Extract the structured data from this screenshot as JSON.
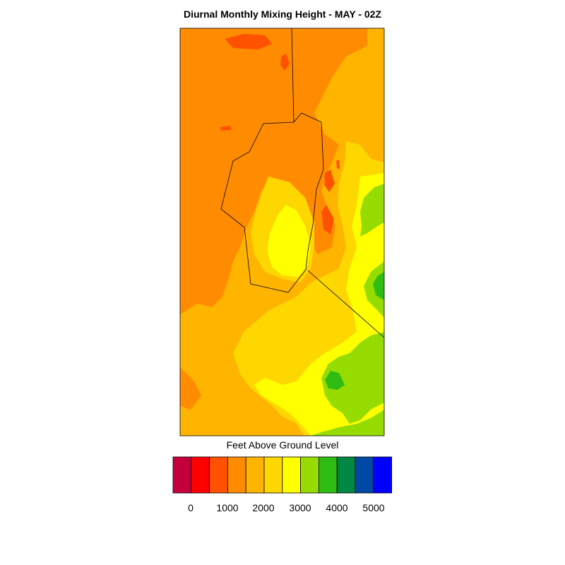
{
  "title": "Diurnal Monthly Mixing Height - MAY - 02Z",
  "legend": {
    "units": "Feet Above Ground Level",
    "colors": [
      "#c4003c",
      "#ff0000",
      "#ff5200",
      "#ff8c00",
      "#ffb400",
      "#ffd700",
      "#ffff00",
      "#96dc00",
      "#2fbc13",
      "#008744",
      "#0048a6",
      "#0000ff"
    ],
    "tick_labels": [
      "0",
      "1000",
      "2000",
      "3000",
      "4000",
      "5000"
    ]
  },
  "map": {
    "background_color": "#ffb400",
    "contour_colors": {
      "orange_dark": "#ff8c00",
      "red_orange": "#ff5200",
      "gold": "#ffd700",
      "yellow": "#ffff00",
      "light_green": "#96dc00",
      "green": "#2fbc13"
    }
  }
}
